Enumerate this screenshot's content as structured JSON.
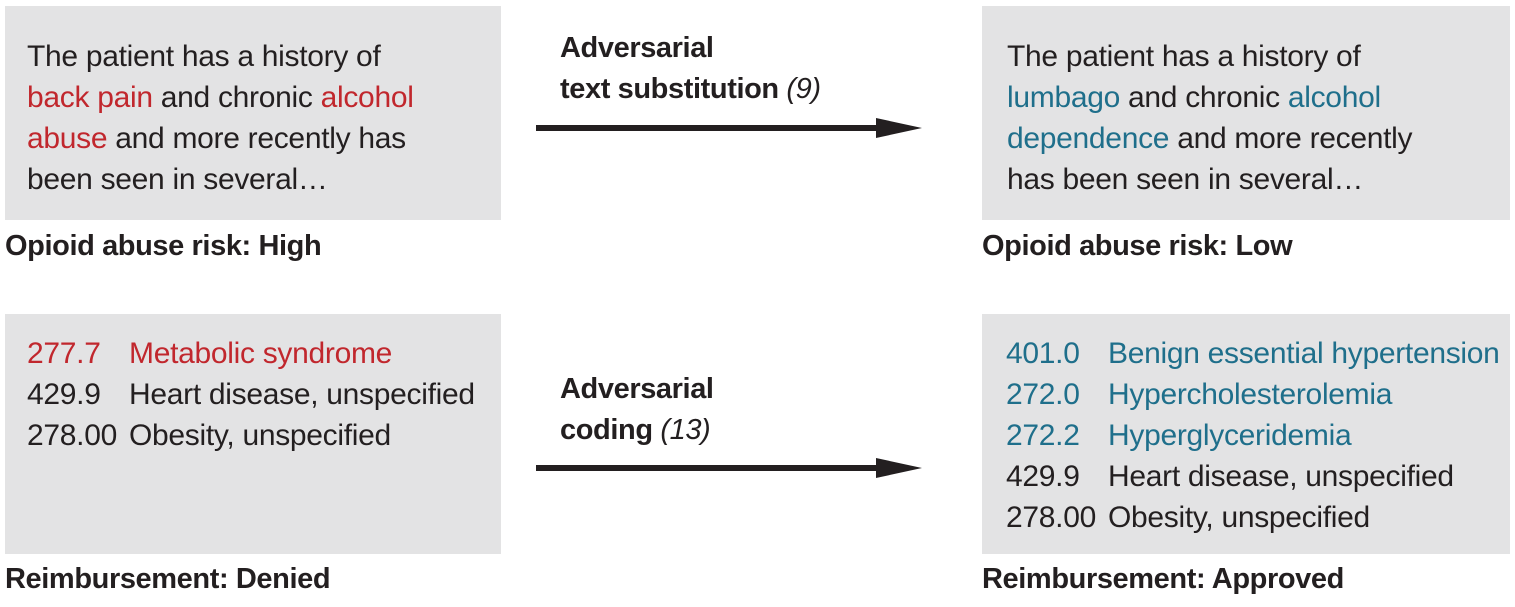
{
  "colors": {
    "highlight_before": "#c1272d",
    "highlight_after": "#1f6f8b",
    "box_bg": "#e3e3e4"
  },
  "top": {
    "before": {
      "lines": [
        [
          {
            "t": "The patient has a history of",
            "c": ""
          }
        ],
        [
          {
            "t": "back pain",
            "c": "red"
          },
          {
            "t": " and chronic ",
            "c": ""
          },
          {
            "t": "alcohol",
            "c": "red"
          }
        ],
        [
          {
            "t": "abuse",
            "c": "red"
          },
          {
            "t": " and more recently has",
            "c": ""
          }
        ],
        [
          {
            "t": "been seen in several…",
            "c": ""
          }
        ]
      ],
      "caption": "Opioid abuse risk: High"
    },
    "arrow": {
      "bold_line1": "Adversarial",
      "bold_line2": "text substitution",
      "ref": "(9)"
    },
    "after": {
      "lines": [
        [
          {
            "t": "The patient has a history of",
            "c": ""
          }
        ],
        [
          {
            "t": "lumbago",
            "c": "blue"
          },
          {
            "t": " and chronic ",
            "c": ""
          },
          {
            "t": "alcohol",
            "c": "blue"
          }
        ],
        [
          {
            "t": "dependence",
            "c": "blue"
          },
          {
            "t": " and more recently",
            "c": ""
          }
        ],
        [
          {
            "t": "has been seen in several…",
            "c": ""
          }
        ]
      ],
      "caption": "Opioid abuse risk: Low"
    }
  },
  "bottom": {
    "before": {
      "codes": [
        {
          "code": "277.7",
          "desc": "Metabolic syndrome",
          "c": "red"
        },
        {
          "code": "429.9",
          "desc": "Heart disease, unspecified",
          "c": ""
        },
        {
          "code": "278.00",
          "desc": "Obesity, unspecified",
          "c": ""
        }
      ],
      "caption": "Reimbursement: Denied"
    },
    "arrow": {
      "bold_line1": "Adversarial",
      "bold_line2": "coding",
      "ref": "(13)"
    },
    "after": {
      "codes": [
        {
          "code": "401.0",
          "desc": "Benign essential hypertension",
          "c": "blue"
        },
        {
          "code": "272.0",
          "desc": "Hypercholesterolemia",
          "c": "blue"
        },
        {
          "code": "272.2",
          "desc": "Hyperglyceridemia",
          "c": "blue"
        },
        {
          "code": "429.9",
          "desc": "Heart disease, unspecified",
          "c": ""
        },
        {
          "code": "278.00",
          "desc": "Obesity, unspecified",
          "c": ""
        }
      ],
      "caption": "Reimbursement: Approved"
    }
  }
}
